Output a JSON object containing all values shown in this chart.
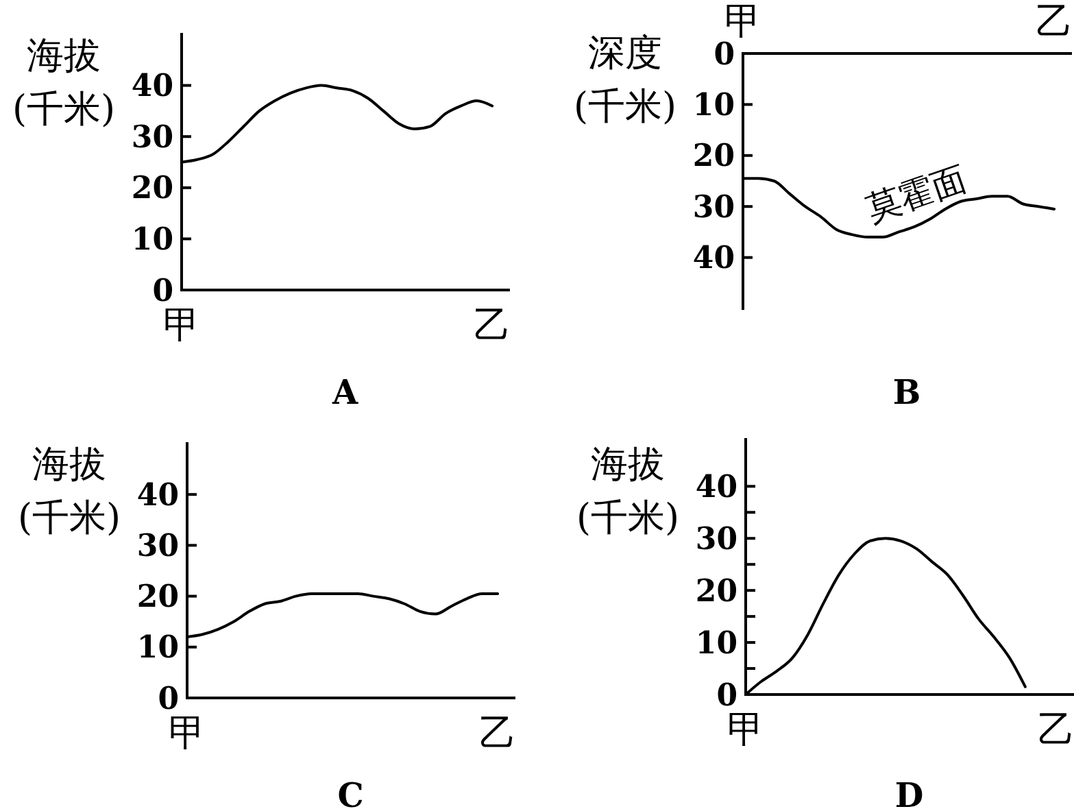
{
  "chart_data": [
    {
      "type": "line",
      "title": "A",
      "ylabel": "海拔\n(千米)",
      "color": "#000000",
      "categories": [
        "甲",
        null,
        null,
        null,
        null,
        null,
        null,
        null,
        null,
        null,
        null,
        null,
        null,
        null,
        null,
        null,
        null,
        null,
        null,
        null,
        "乙"
      ],
      "values": [
        25,
        25.5,
        26.5,
        29,
        32,
        35,
        37,
        38.5,
        39.5,
        40,
        39.5,
        39,
        37.5,
        35,
        32.5,
        31.5,
        32,
        34.5,
        36,
        37,
        36
      ],
      "ylim": [
        0,
        50
      ],
      "yticks": [
        0,
        10,
        20,
        30,
        40
      ]
    },
    {
      "type": "line",
      "title": "B",
      "ylabel": "深度\n(千米)",
      "color": "#000000",
      "categories": [
        "甲",
        null,
        null,
        null,
        null,
        null,
        null,
        null,
        null,
        null,
        null,
        null,
        null,
        null,
        null,
        null,
        null,
        null,
        null,
        null,
        "乙"
      ],
      "values": [
        24.5,
        24.5,
        25,
        27.5,
        30,
        32,
        34.5,
        35.5,
        36,
        36,
        35,
        34,
        32.5,
        30.5,
        29,
        28.5,
        28,
        28,
        29.5,
        30,
        30.5
      ],
      "ylim": [
        50,
        0
      ],
      "yticks": [
        0,
        10,
        20,
        30,
        40
      ],
      "annotations": [
        "莫霍面"
      ]
    },
    {
      "type": "line",
      "title": "C",
      "ylabel": "海拔\n(千米)",
      "color": "#000000",
      "categories": [
        "甲",
        null,
        null,
        null,
        null,
        null,
        null,
        null,
        null,
        null,
        null,
        null,
        null,
        null,
        null,
        null,
        null,
        null,
        null,
        null,
        "乙"
      ],
      "values": [
        12,
        12.5,
        13.5,
        15,
        17,
        18.5,
        19,
        20,
        20.5,
        20.5,
        20.5,
        20.5,
        20,
        19.5,
        18.5,
        17,
        16.5,
        18,
        19.5,
        20.5,
        20.5
      ],
      "ylim": [
        0,
        50
      ],
      "yticks": [
        0,
        10,
        20,
        30,
        40
      ]
    },
    {
      "type": "line",
      "title": "D",
      "ylabel": "海拔\n(千米)",
      "color": "#000000",
      "categories": [
        "甲",
        null,
        null,
        null,
        null,
        null,
        null,
        null,
        null,
        null,
        null,
        null,
        null,
        null,
        null,
        null,
        null,
        null,
        null,
        null,
        "乙"
      ],
      "values": [
        0,
        2.5,
        4.5,
        7,
        11.5,
        17.5,
        23,
        27,
        29.5,
        30,
        29.5,
        28,
        25.5,
        23,
        19,
        14.5,
        11,
        7,
        1.5,
        null,
        null
      ],
      "ylim": [
        0,
        49
      ],
      "yticks": [
        0,
        {
          "value": 5,
          "label": null
        },
        10,
        {
          "value": 15,
          "label": null
        },
        20,
        {
          "value": 25,
          "label": null
        },
        30,
        {
          "value": 35,
          "label": null
        },
        40
      ]
    }
  ]
}
